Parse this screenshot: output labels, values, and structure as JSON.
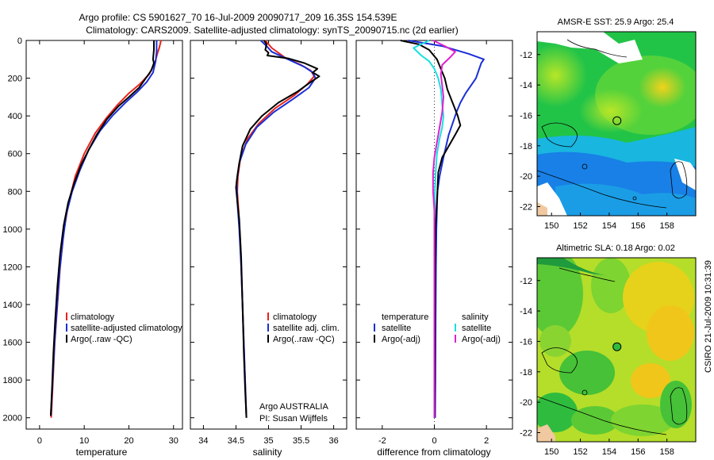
{
  "title": {
    "line1": "Argo profile: CS 5901627_70 16-Jul-2009 20090717_209 16.35S 154.539E",
    "line2": "Climatology: CARS2009. Satellite-adjusted climatology: synTS_20090715.nc (2d earlier)"
  },
  "side_label": "CSIRO 21-Jul-2009 10:31:39",
  "chart_data": [
    {
      "type": "line",
      "id": "temperature",
      "xlabel": "temperature",
      "xlim": [
        -3,
        32
      ],
      "xticks": [
        0,
        10,
        20,
        30
      ],
      "ylim": [
        2060,
        0
      ],
      "yticks": [
        0,
        200,
        400,
        600,
        800,
        1000,
        1200,
        1400,
        1600,
        1800,
        2000
      ],
      "legend": [
        "climatology",
        "satellite-adjusted climatology",
        "Argo(..raw -QC)"
      ],
      "legend_position": "lower-right",
      "series": [
        {
          "name": "climatology",
          "color": "#e8231e",
          "points": [
            [
              27.2,
              0
            ],
            [
              26.8,
              40
            ],
            [
              26.5,
              60
            ],
            [
              25.8,
              120
            ],
            [
              24.5,
              180
            ],
            [
              22.5,
              230
            ],
            [
              20.0,
              280
            ],
            [
              17.5,
              340
            ],
            [
              15.0,
              410
            ],
            [
              12.5,
              490
            ],
            [
              10.0,
              600
            ],
            [
              8.0,
              720
            ],
            [
              6.5,
              860
            ],
            [
              5.5,
              1000
            ],
            [
              4.6,
              1200
            ],
            [
              4.0,
              1400
            ],
            [
              3.4,
              1600
            ],
            [
              3.0,
              1800
            ],
            [
              2.6,
              2000
            ]
          ]
        },
        {
          "name": "satellite-adjusted climatology",
          "color": "#1a2fd6",
          "points": [
            [
              26.2,
              0
            ],
            [
              26.2,
              60
            ],
            [
              26.0,
              110
            ],
            [
              25.4,
              170
            ],
            [
              24.0,
              220
            ],
            [
              22.0,
              270
            ],
            [
              19.2,
              330
            ],
            [
              16.3,
              400
            ],
            [
              13.5,
              480
            ],
            [
              11.0,
              580
            ],
            [
              9.0,
              690
            ],
            [
              7.3,
              800
            ],
            [
              6.0,
              920
            ],
            [
              5.2,
              1060
            ],
            [
              4.5,
              1220
            ],
            [
              3.9,
              1420
            ],
            [
              3.3,
              1620
            ],
            [
              2.9,
              1820
            ],
            [
              2.5,
              1990
            ]
          ]
        },
        {
          "name": "Argo(..raw -QC)",
          "color": "#000000",
          "points": [
            [
              25.6,
              0
            ],
            [
              25.6,
              50
            ],
            [
              25.4,
              100
            ],
            [
              25.6,
              120
            ],
            [
              25.0,
              160
            ],
            [
              23.8,
              200
            ],
            [
              22.3,
              250
            ],
            [
              20.0,
              300
            ],
            [
              17.6,
              350
            ],
            [
              15.0,
              420
            ],
            [
              12.8,
              500
            ],
            [
              11.0,
              580
            ],
            [
              9.3,
              660
            ],
            [
              7.7,
              760
            ],
            [
              6.4,
              860
            ],
            [
              5.4,
              980
            ],
            [
              4.6,
              1130
            ],
            [
              4.0,
              1300
            ],
            [
              3.5,
              1480
            ],
            [
              3.1,
              1660
            ],
            [
              2.8,
              1840
            ],
            [
              2.5,
              1990
            ]
          ]
        }
      ]
    },
    {
      "type": "line",
      "id": "salinity",
      "xlabel": "salinity",
      "xlim": [
        33.8,
        36.2
      ],
      "xticks": [
        34,
        34.5,
        35,
        35.5,
        36
      ],
      "ylim": [
        2060,
        0
      ],
      "legend": [
        "climatology",
        "satellite adj. clim.",
        "Argo(..raw -QC)"
      ],
      "legend_position": "lower-right",
      "annotation": [
        "Argo AUSTRALIA",
        "PI: Susan Wijffels"
      ],
      "series": [
        {
          "name": "climatology",
          "color": "#e8231e",
          "points": [
            [
              34.95,
              0
            ],
            [
              35.05,
              40
            ],
            [
              35.25,
              90
            ],
            [
              35.5,
              130
            ],
            [
              35.65,
              160
            ],
            [
              35.7,
              190
            ],
            [
              35.6,
              230
            ],
            [
              35.4,
              290
            ],
            [
              35.1,
              360
            ],
            [
              34.85,
              440
            ],
            [
              34.68,
              520
            ],
            [
              34.57,
              620
            ],
            [
              34.53,
              720
            ],
            [
              34.52,
              800
            ],
            [
              34.54,
              900
            ],
            [
              34.57,
              1100
            ],
            [
              34.6,
              1400
            ],
            [
              34.63,
              1700
            ],
            [
              34.66,
              2000
            ]
          ]
        },
        {
          "name": "satellite adj. clim.",
          "color": "#1a2fd6",
          "points": [
            [
              34.88,
              0
            ],
            [
              34.97,
              30
            ],
            [
              35.05,
              60
            ],
            [
              35.3,
              100
            ],
            [
              35.55,
              140
            ],
            [
              35.68,
              170
            ],
            [
              35.72,
              200
            ],
            [
              35.62,
              250
            ],
            [
              35.38,
              310
            ],
            [
              35.08,
              380
            ],
            [
              34.82,
              460
            ],
            [
              34.65,
              550
            ],
            [
              34.55,
              650
            ],
            [
              34.51,
              750
            ],
            [
              34.52,
              850
            ],
            [
              34.55,
              1000
            ],
            [
              34.58,
              1200
            ],
            [
              34.61,
              1500
            ],
            [
              34.64,
              1800
            ],
            [
              34.66,
              2000
            ]
          ]
        },
        {
          "name": "Argo(..raw -QC)",
          "color": "#000000",
          "points": [
            [
              34.93,
              0
            ],
            [
              34.97,
              20
            ],
            [
              34.95,
              50
            ],
            [
              35.0,
              65
            ],
            [
              34.98,
              80
            ],
            [
              35.3,
              95
            ],
            [
              35.55,
              120
            ],
            [
              35.75,
              150
            ],
            [
              35.68,
              170
            ],
            [
              35.78,
              190
            ],
            [
              35.65,
              220
            ],
            [
              35.45,
              270
            ],
            [
              35.15,
              330
            ],
            [
              34.9,
              400
            ],
            [
              34.72,
              470
            ],
            [
              34.6,
              560
            ],
            [
              34.55,
              650
            ],
            [
              34.52,
              720
            ],
            [
              34.5,
              780
            ],
            [
              34.52,
              850
            ],
            [
              34.55,
              950
            ],
            [
              34.58,
              1150
            ],
            [
              34.6,
              1400
            ],
            [
              34.62,
              1650
            ],
            [
              34.64,
              1850
            ],
            [
              34.66,
              2000
            ]
          ]
        }
      ]
    },
    {
      "type": "line",
      "id": "difference",
      "xlabel": "difference from climatology",
      "xlim": [
        -3,
        3
      ],
      "xticks": [
        -2,
        0,
        2
      ],
      "ylim": [
        2060,
        0
      ],
      "legend": [
        "temperature",
        "satellite",
        "Argo(-adj)",
        "salinity",
        "satellite",
        "Argo(-adj)"
      ],
      "legend_position": "lower",
      "series": [
        {
          "name": "temperature satellite",
          "color": "#1a2fd6",
          "points": [
            [
              -1.0,
              0
            ],
            [
              0.3,
              30
            ],
            [
              1.3,
              70
            ],
            [
              1.9,
              100
            ],
            [
              1.8,
              120
            ],
            [
              1.7,
              160
            ],
            [
              1.6,
              200
            ],
            [
              1.4,
              240
            ],
            [
              1.2,
              280
            ],
            [
              1.0,
              330
            ],
            [
              0.85,
              380
            ],
            [
              0.7,
              440
            ],
            [
              0.55,
              500
            ],
            [
              0.45,
              560
            ],
            [
              0.35,
              620
            ],
            [
              0.2,
              720
            ],
            [
              0.12,
              800
            ],
            [
              0.08,
              1000
            ],
            [
              0.06,
              1200
            ],
            [
              0.05,
              1500
            ],
            [
              0.04,
              1800
            ],
            [
              0.03,
              2000
            ]
          ]
        },
        {
          "name": "temperature Argo(-adj)",
          "color": "#000000",
          "points": [
            [
              -1.3,
              0
            ],
            [
              -0.6,
              20
            ],
            [
              -0.2,
              50
            ],
            [
              0.1,
              100
            ],
            [
              0.25,
              150
            ],
            [
              0.4,
              200
            ],
            [
              0.5,
              260
            ],
            [
              0.7,
              330
            ],
            [
              0.9,
              400
            ],
            [
              1.0,
              450
            ],
            [
              0.8,
              500
            ],
            [
              0.55,
              560
            ],
            [
              0.3,
              620
            ],
            [
              0.15,
              700
            ],
            [
              0.12,
              800
            ],
            [
              0.08,
              900
            ],
            [
              0.04,
              1000
            ],
            [
              0.03,
              1200
            ],
            [
              0.02,
              1500
            ],
            [
              0.02,
              1800
            ],
            [
              0.01,
              2000
            ]
          ]
        },
        {
          "name": "salinity satellite",
          "color": "#19e0e0",
          "points": [
            [
              -0.2,
              0
            ],
            [
              -0.8,
              40
            ],
            [
              -0.5,
              80
            ],
            [
              -0.2,
              110
            ],
            [
              0.0,
              150
            ],
            [
              0.15,
              200
            ],
            [
              0.25,
              260
            ],
            [
              0.3,
              340
            ],
            [
              0.35,
              400
            ],
            [
              0.3,
              460
            ],
            [
              0.2,
              520
            ],
            [
              0.1,
              600
            ],
            [
              0.05,
              700
            ],
            [
              0.02,
              800
            ],
            [
              0.0,
              1000
            ],
            [
              0.0,
              1300
            ],
            [
              0.0,
              1600
            ],
            [
              0.0,
              2000
            ]
          ]
        },
        {
          "name": "salinity Argo(-adj)",
          "color": "#e020d0",
          "points": [
            [
              -0.05,
              0
            ],
            [
              0.4,
              30
            ],
            [
              0.8,
              60
            ],
            [
              0.6,
              90
            ],
            [
              0.3,
              130
            ],
            [
              0.25,
              180
            ],
            [
              0.3,
              240
            ],
            [
              0.35,
              300
            ],
            [
              0.3,
              380
            ],
            [
              0.2,
              460
            ],
            [
              0.1,
              540
            ],
            [
              0.0,
              620
            ],
            [
              -0.05,
              700
            ],
            [
              -0.05,
              800
            ],
            [
              0.0,
              900
            ],
            [
              0.0,
              1100
            ],
            [
              0.0,
              1400
            ],
            [
              0.0,
              1700
            ],
            [
              0.0,
              2000
            ]
          ]
        }
      ]
    },
    {
      "type": "heatmap",
      "id": "sst-map",
      "title": "AMSR-E SST: 25.9  Argo: 25.4",
      "xlim": [
        149,
        160
      ],
      "ylim": [
        -22.6,
        -10.5
      ],
      "xticks": [
        150,
        152,
        154,
        156,
        158
      ],
      "yticks": [
        -12,
        -14,
        -16,
        -18,
        -20,
        -22
      ],
      "marker": {
        "lon": 154.539,
        "lat": -16.35
      }
    },
    {
      "type": "heatmap",
      "id": "sla-map",
      "title": "Altimetric SLA: 0.18  Argo: 0.02",
      "xlim": [
        149,
        160
      ],
      "ylim": [
        -22.6,
        -10.5
      ],
      "xticks": [
        150,
        152,
        154,
        156,
        158
      ],
      "yticks": [
        -12,
        -14,
        -16,
        -18,
        -20,
        -22
      ],
      "marker": {
        "lon": 154.539,
        "lat": -16.35
      }
    }
  ]
}
